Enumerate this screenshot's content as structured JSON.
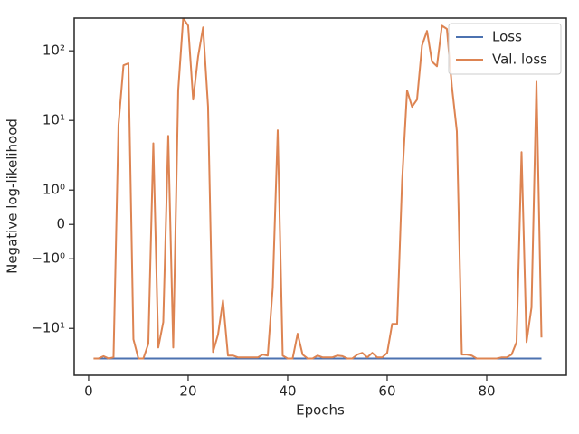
{
  "chart_data": {
    "type": "line",
    "xlabel": "Epochs",
    "ylabel": "Negative log-likelihood",
    "yscale": "symlog",
    "x": [
      1,
      2,
      3,
      4,
      5,
      6,
      7,
      8,
      9,
      10,
      11,
      12,
      13,
      14,
      15,
      16,
      17,
      18,
      19,
      20,
      21,
      22,
      23,
      24,
      25,
      26,
      27,
      28,
      29,
      30,
      31,
      32,
      33,
      34,
      35,
      36,
      37,
      38,
      39,
      40,
      41,
      42,
      43,
      44,
      45,
      46,
      47,
      48,
      49,
      50,
      51,
      52,
      53,
      54,
      55,
      56,
      57,
      58,
      59,
      60,
      61,
      62,
      63,
      64,
      65,
      66,
      67,
      68,
      69,
      70,
      71,
      72,
      73,
      74,
      75,
      76,
      77,
      78,
      79,
      80,
      81,
      82,
      83,
      84,
      85,
      86,
      87,
      88,
      89,
      90,
      91
    ],
    "series": [
      {
        "name": "Loss",
        "color": "#4c72b0",
        "values": [
          -27,
          -27,
          -27,
          -27,
          -27,
          -27,
          -27,
          -27,
          -27,
          -27,
          -27,
          -27,
          -27,
          -27,
          -27,
          -27,
          -27,
          -27,
          -27,
          -27,
          -27,
          -27,
          -27,
          -27,
          -27,
          -27,
          -27,
          -27,
          -27,
          -27,
          -27,
          -27,
          -27,
          -27,
          -27,
          -27,
          -27,
          -27,
          -27,
          -27,
          -27,
          -27,
          -27,
          -27,
          -27,
          -27,
          -27,
          -27,
          -27,
          -27,
          -27,
          -27,
          -27,
          -27,
          -27,
          -27,
          -27,
          -27,
          -27,
          -27,
          -27,
          -27,
          -27,
          -27,
          -27,
          -27,
          -27,
          -27,
          -27,
          -27,
          -27,
          -27,
          -27,
          -27,
          -27,
          -27,
          -27,
          -27,
          -27,
          -27,
          -27,
          -27,
          -27,
          -27,
          -27,
          -27,
          -27,
          -27,
          -27,
          -27,
          -27
        ]
      },
      {
        "name": "Val. loss",
        "color": "#dd8452",
        "values": [
          -27,
          -27,
          -25,
          -27,
          -26,
          8.6,
          62,
          66,
          -14.3,
          -27,
          -27,
          -16.6,
          4.7,
          -18.8,
          -8.1,
          6.0,
          -18.8,
          26.9,
          295,
          230,
          19.9,
          83,
          217,
          15.7,
          -21.8,
          -12.3,
          -3.96,
          -24.5,
          -24.5,
          -26,
          -26,
          -26,
          -26,
          -26,
          -23.7,
          -24.5,
          -2.6,
          7.2,
          -24.5,
          -27,
          -27,
          -11.9,
          -23.7,
          -27,
          -27,
          -24.5,
          -26,
          -26,
          -26,
          -24.5,
          -25,
          -27,
          -27,
          -23.7,
          -22.4,
          -26,
          -22.4,
          -26,
          -26,
          -22.4,
          -8.6,
          -8.6,
          1.35,
          26.9,
          15.7,
          19.9,
          119,
          193,
          70,
          60,
          230,
          206,
          31,
          7.0,
          -23.7,
          -23.7,
          -24.5,
          -27,
          -27,
          -27,
          -27,
          -27,
          -26,
          -26,
          -23.7,
          -15.7,
          3.5,
          -15.7,
          -5.0,
          36,
          -13.5
        ]
      }
    ],
    "xlim": [
      -2.9,
      96
    ],
    "xticks": [
      0,
      20,
      40,
      60,
      80
    ],
    "ylim": [
      -47,
      295
    ],
    "yticks": [
      {
        "value": -10,
        "label": "−10¹"
      },
      {
        "value": -1,
        "label": "−10⁰"
      },
      0,
      {
        "value": 1,
        "label": "10⁰"
      },
      {
        "value": 10,
        "label": "10¹"
      },
      {
        "value": 100,
        "label": "10²"
      }
    ],
    "legend": "upper right"
  }
}
